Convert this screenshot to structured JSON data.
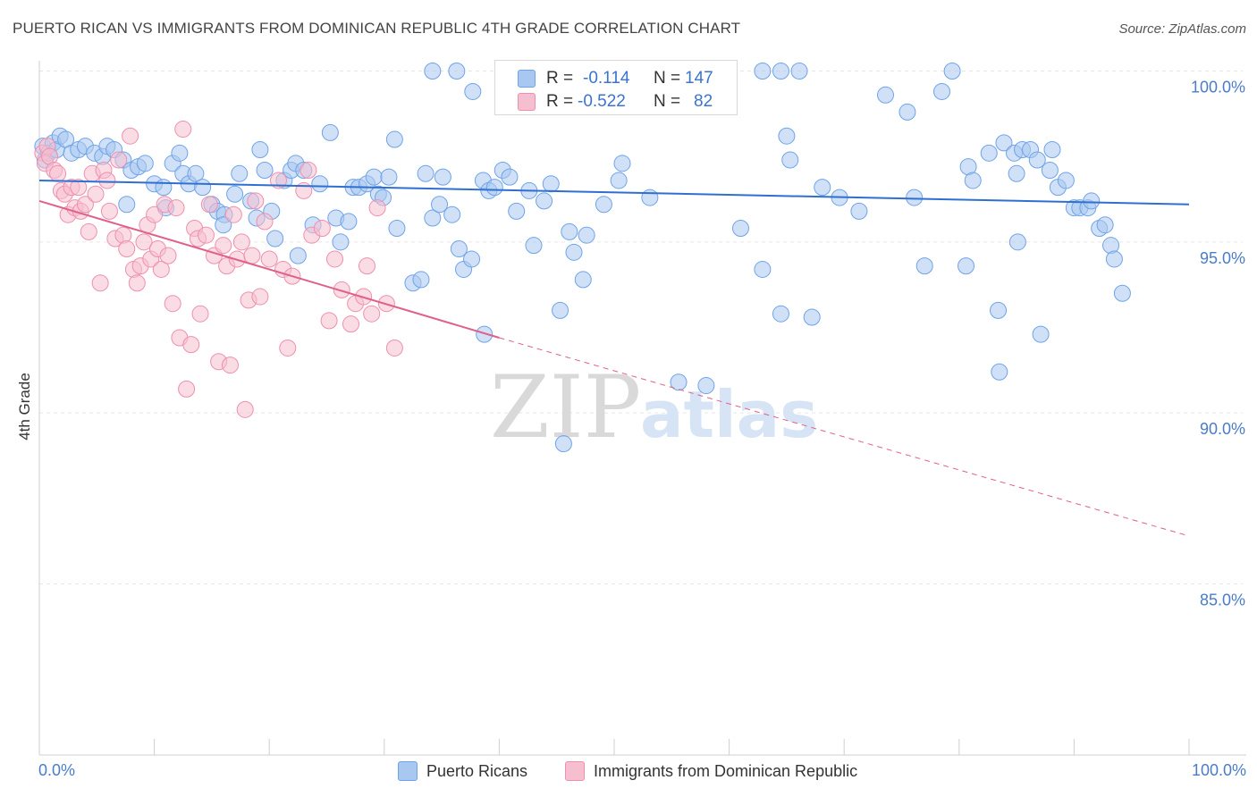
{
  "header": {
    "title": "PUERTO RICAN VS IMMIGRANTS FROM DOMINICAN REPUBLIC 4TH GRADE CORRELATION CHART",
    "source": "Source: ZipAtlas.com"
  },
  "watermark": {
    "zip": "ZIP",
    "atlas": "atlas"
  },
  "stat_legend": {
    "rows": [
      {
        "r_label": "R =",
        "r_value": "-0.114",
        "n_label": "N =",
        "n_value": "147",
        "color": "#6fa3e8"
      },
      {
        "r_label": "R =",
        "r_value": "-0.522",
        "n_label": "N =",
        "n_value": "82",
        "color": "#ef8fae"
      }
    ]
  },
  "x_axis": {
    "min_label": "0.0%",
    "max_label": "100.0%"
  },
  "colors": {
    "blue_fill": "#a9c8f1",
    "blue_stroke": "#6fa3e8",
    "blue_line": "#2f6fd1",
    "pink_fill": "#f6bfd0",
    "pink_stroke": "#ef8fae",
    "pink_line": "#e0608a",
    "tick_label": "#4a7cc9",
    "grid": "#e6e6e6"
  },
  "chart_data": {
    "type": "scatter",
    "title": "PUERTO RICAN VS IMMIGRANTS FROM DOMINICAN REPUBLIC 4TH GRADE CORRELATION CHART",
    "xlabel": "",
    "ylabel": "4th Grade",
    "xlim": [
      0,
      100
    ],
    "ylim": [
      80.3,
      100.8
    ],
    "yticks": [
      85,
      90,
      95,
      100
    ],
    "ytick_labels": [
      "85.0%",
      "90.0%",
      "95.0%",
      "100.0%"
    ],
    "grid": true,
    "legend_position": "bottom",
    "series": [
      {
        "name": "Puerto Ricans",
        "color": "#6fa3e8",
        "trend": {
          "x": [
            0,
            100
          ],
          "y": [
            96.8,
            96.1
          ],
          "style": "solid"
        },
        "points": [
          [
            0.3,
            97.8
          ],
          [
            0.5,
            97.4
          ],
          [
            0.8,
            97.6
          ],
          [
            1.2,
            97.9
          ],
          [
            1.5,
            97.7
          ],
          [
            1.8,
            98.1
          ],
          [
            2.3,
            98.0
          ],
          [
            2.8,
            97.6
          ],
          [
            3.4,
            97.7
          ],
          [
            4.0,
            97.8
          ],
          [
            4.8,
            97.6
          ],
          [
            5.5,
            97.5
          ],
          [
            5.9,
            97.8
          ],
          [
            6.5,
            97.7
          ],
          [
            7.3,
            97.4
          ],
          [
            8.0,
            97.1
          ],
          [
            8.6,
            97.2
          ],
          [
            9.2,
            97.3
          ],
          [
            10.0,
            96.7
          ],
          [
            10.8,
            96.6
          ],
          [
            11.6,
            97.3
          ],
          [
            12.2,
            97.6
          ],
          [
            12.5,
            97.0
          ],
          [
            13.0,
            96.7
          ],
          [
            13.6,
            97.0
          ],
          [
            14.2,
            96.6
          ],
          [
            15.0,
            96.1
          ],
          [
            15.5,
            95.9
          ],
          [
            16.1,
            95.8
          ],
          [
            17.0,
            96.4
          ],
          [
            16.0,
            95.5
          ],
          [
            11.0,
            96.0
          ],
          [
            7.6,
            96.1
          ],
          [
            17.4,
            97.0
          ],
          [
            18.4,
            96.2
          ],
          [
            18.9,
            95.7
          ],
          [
            19.2,
            97.7
          ],
          [
            19.6,
            97.1
          ],
          [
            20.2,
            95.9
          ],
          [
            20.5,
            95.1
          ],
          [
            21.3,
            96.8
          ],
          [
            21.9,
            97.1
          ],
          [
            22.3,
            97.3
          ],
          [
            23.0,
            97.1
          ],
          [
            22.5,
            94.6
          ],
          [
            23.8,
            95.5
          ],
          [
            24.4,
            96.7
          ],
          [
            25.3,
            98.2
          ],
          [
            25.8,
            95.7
          ],
          [
            26.2,
            95.0
          ],
          [
            26.9,
            95.6
          ],
          [
            27.3,
            96.6
          ],
          [
            27.8,
            96.6
          ],
          [
            28.5,
            96.7
          ],
          [
            29.1,
            96.9
          ],
          [
            29.5,
            96.4
          ],
          [
            29.9,
            96.3
          ],
          [
            30.4,
            96.9
          ],
          [
            31.1,
            95.4
          ],
          [
            30.9,
            98.0
          ],
          [
            32.5,
            93.8
          ],
          [
            33.2,
            93.9
          ],
          [
            33.6,
            97.0
          ],
          [
            34.2,
            95.7
          ],
          [
            34.8,
            96.1
          ],
          [
            35.1,
            96.9
          ],
          [
            35.9,
            95.8
          ],
          [
            36.5,
            94.8
          ],
          [
            36.9,
            94.2
          ],
          [
            37.6,
            94.5
          ],
          [
            38.6,
            96.8
          ],
          [
            38.7,
            92.3
          ],
          [
            39.1,
            96.5
          ],
          [
            39.6,
            96.6
          ],
          [
            40.3,
            97.1
          ],
          [
            40.9,
            96.9
          ],
          [
            41.5,
            95.9
          ],
          [
            42.6,
            96.5
          ],
          [
            43.0,
            94.9
          ],
          [
            43.9,
            96.2
          ],
          [
            44.5,
            96.7
          ],
          [
            45.3,
            93.0
          ],
          [
            45.6,
            89.1
          ],
          [
            46.1,
            95.3
          ],
          [
            46.5,
            94.7
          ],
          [
            47.3,
            93.9
          ],
          [
            47.6,
            95.2
          ],
          [
            49.1,
            96.1
          ],
          [
            50.4,
            96.8
          ],
          [
            50.7,
            97.3
          ],
          [
            53.1,
            96.3
          ],
          [
            55.6,
            90.9
          ],
          [
            58.0,
            90.8
          ],
          [
            61.0,
            95.4
          ],
          [
            62.9,
            94.2
          ],
          [
            64.5,
            92.9
          ],
          [
            65.0,
            98.1
          ],
          [
            65.3,
            97.4
          ],
          [
            67.2,
            92.8
          ],
          [
            68.1,
            96.6
          ],
          [
            69.6,
            96.3
          ],
          [
            71.3,
            95.9
          ],
          [
            73.6,
            99.3
          ],
          [
            75.5,
            98.8
          ],
          [
            76.1,
            96.3
          ],
          [
            77.0,
            94.3
          ],
          [
            78.5,
            99.4
          ],
          [
            80.6,
            94.3
          ],
          [
            80.8,
            97.2
          ],
          [
            81.2,
            96.8
          ],
          [
            82.6,
            97.6
          ],
          [
            83.5,
            91.2
          ],
          [
            83.4,
            93.0
          ],
          [
            83.9,
            97.9
          ],
          [
            84.8,
            97.6
          ],
          [
            85.0,
            97.0
          ],
          [
            85.1,
            95.0
          ],
          [
            85.5,
            97.7
          ],
          [
            86.2,
            97.7
          ],
          [
            86.8,
            97.4
          ],
          [
            87.1,
            92.3
          ],
          [
            87.9,
            97.1
          ],
          [
            88.1,
            97.7
          ],
          [
            88.6,
            96.6
          ],
          [
            89.3,
            96.8
          ],
          [
            90.0,
            96.0
          ],
          [
            90.5,
            96.0
          ],
          [
            91.2,
            96.0
          ],
          [
            91.5,
            96.2
          ],
          [
            92.2,
            95.4
          ],
          [
            92.7,
            95.5
          ],
          [
            93.2,
            94.9
          ],
          [
            93.5,
            94.5
          ],
          [
            94.2,
            93.5
          ],
          [
            34.2,
            100.0
          ],
          [
            36.3,
            100.0
          ],
          [
            37.7,
            99.4
          ],
          [
            42.7,
            100.0
          ],
          [
            46.0,
            100.0
          ],
          [
            48.1,
            100.0
          ],
          [
            50.2,
            100.0
          ],
          [
            53.2,
            100.0
          ],
          [
            57.9,
            100.0
          ],
          [
            62.9,
            100.0
          ],
          [
            64.5,
            100.0
          ],
          [
            66.1,
            100.0
          ],
          [
            79.4,
            100.0
          ]
        ]
      },
      {
        "name": "Immigrants from Dominican Republic",
        "color": "#ef8fae",
        "trend": {
          "x": [
            0,
            40
          ],
          "y": [
            96.2,
            92.2
          ],
          "style": "solid",
          "extended": {
            "x": [
              40,
              100
            ],
            "y": [
              92.2,
              86.4
            ],
            "style": "dashed"
          }
        },
        "points": [
          [
            0.3,
            97.6
          ],
          [
            0.5,
            97.3
          ],
          [
            0.7,
            97.8
          ],
          [
            0.9,
            97.5
          ],
          [
            1.3,
            97.1
          ],
          [
            1.6,
            97.0
          ],
          [
            1.9,
            96.5
          ],
          [
            2.2,
            96.4
          ],
          [
            2.5,
            95.8
          ],
          [
            2.8,
            96.6
          ],
          [
            3.1,
            96.0
          ],
          [
            3.4,
            96.6
          ],
          [
            3.6,
            95.9
          ],
          [
            4.0,
            96.1
          ],
          [
            4.3,
            95.3
          ],
          [
            4.6,
            97.0
          ],
          [
            4.9,
            96.4
          ],
          [
            5.3,
            93.8
          ],
          [
            5.6,
            97.1
          ],
          [
            5.9,
            96.8
          ],
          [
            6.1,
            95.9
          ],
          [
            6.6,
            95.1
          ],
          [
            6.9,
            97.4
          ],
          [
            7.3,
            95.2
          ],
          [
            7.6,
            94.8
          ],
          [
            7.9,
            98.1
          ],
          [
            8.2,
            94.2
          ],
          [
            8.5,
            93.8
          ],
          [
            8.8,
            94.3
          ],
          [
            9.1,
            95.0
          ],
          [
            9.4,
            95.5
          ],
          [
            9.7,
            94.5
          ],
          [
            10.0,
            95.8
          ],
          [
            10.3,
            94.8
          ],
          [
            10.6,
            94.2
          ],
          [
            10.9,
            96.1
          ],
          [
            11.2,
            94.6
          ],
          [
            11.6,
            93.2
          ],
          [
            11.9,
            96.0
          ],
          [
            12.2,
            92.2
          ],
          [
            12.5,
            98.3
          ],
          [
            12.8,
            90.7
          ],
          [
            13.2,
            92.0
          ],
          [
            13.5,
            95.4
          ],
          [
            13.8,
            95.1
          ],
          [
            14.0,
            92.9
          ],
          [
            14.5,
            95.2
          ],
          [
            14.8,
            96.1
          ],
          [
            15.2,
            94.6
          ],
          [
            15.6,
            91.5
          ],
          [
            16.0,
            94.9
          ],
          [
            16.3,
            94.3
          ],
          [
            16.6,
            91.4
          ],
          [
            16.9,
            95.8
          ],
          [
            17.2,
            94.5
          ],
          [
            17.6,
            95.0
          ],
          [
            17.9,
            90.1
          ],
          [
            18.2,
            93.3
          ],
          [
            18.5,
            94.6
          ],
          [
            18.8,
            96.2
          ],
          [
            19.2,
            93.4
          ],
          [
            19.6,
            95.6
          ],
          [
            20.0,
            94.5
          ],
          [
            20.8,
            96.8
          ],
          [
            21.2,
            94.2
          ],
          [
            21.6,
            91.9
          ],
          [
            22.0,
            94.0
          ],
          [
            23.0,
            96.5
          ],
          [
            23.4,
            97.1
          ],
          [
            23.7,
            95.2
          ],
          [
            24.6,
            95.4
          ],
          [
            25.2,
            92.7
          ],
          [
            25.7,
            94.5
          ],
          [
            26.3,
            93.6
          ],
          [
            27.1,
            92.6
          ],
          [
            27.5,
            93.2
          ],
          [
            28.2,
            93.4
          ],
          [
            28.5,
            94.3
          ],
          [
            28.9,
            92.9
          ],
          [
            29.4,
            96.0
          ],
          [
            30.2,
            93.2
          ],
          [
            30.9,
            91.9
          ]
        ]
      }
    ]
  }
}
